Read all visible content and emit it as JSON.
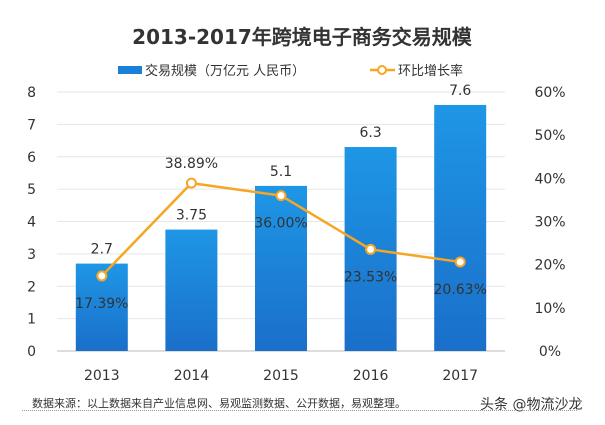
{
  "chart_data": {
    "type": "bar+line",
    "title": "2013-2017年跨境电子商务交易规模",
    "categories": [
      "2013",
      "2014",
      "2015",
      "2016",
      "2017"
    ],
    "series": [
      {
        "name": "交易规模（万亿元 人民币）",
        "type": "bar",
        "axis": "left",
        "color": "#1a7fd6",
        "values": [
          2.7,
          3.75,
          5.1,
          6.3,
          7.6
        ],
        "labels": [
          "2.7",
          "3.75",
          "5.1",
          "6.3",
          "7.6"
        ]
      },
      {
        "name": "环比增长率",
        "type": "line",
        "axis": "right",
        "color": "#f5a623",
        "values": [
          17.39,
          38.89,
          36.0,
          23.53,
          20.63
        ],
        "labels": [
          "17.39%",
          "38.89%",
          "36.00%",
          "23.53%",
          "20.63%"
        ]
      }
    ],
    "y_left": {
      "range": [
        0,
        8
      ],
      "ticks": [
        "0",
        "1",
        "2",
        "3",
        "4",
        "5",
        "6",
        "7",
        "8"
      ]
    },
    "y_right": {
      "range": [
        0,
        60
      ],
      "ticks": [
        "0%",
        "10%",
        "20%",
        "30%",
        "40%",
        "50%",
        "60%"
      ]
    },
    "grid": true,
    "legend": "top"
  },
  "footer": {
    "source": "数据来源：以上数据来自产业信息网、易观监测数据、公开数据，易观整理。",
    "watermark": "头条 @物流沙龙"
  }
}
